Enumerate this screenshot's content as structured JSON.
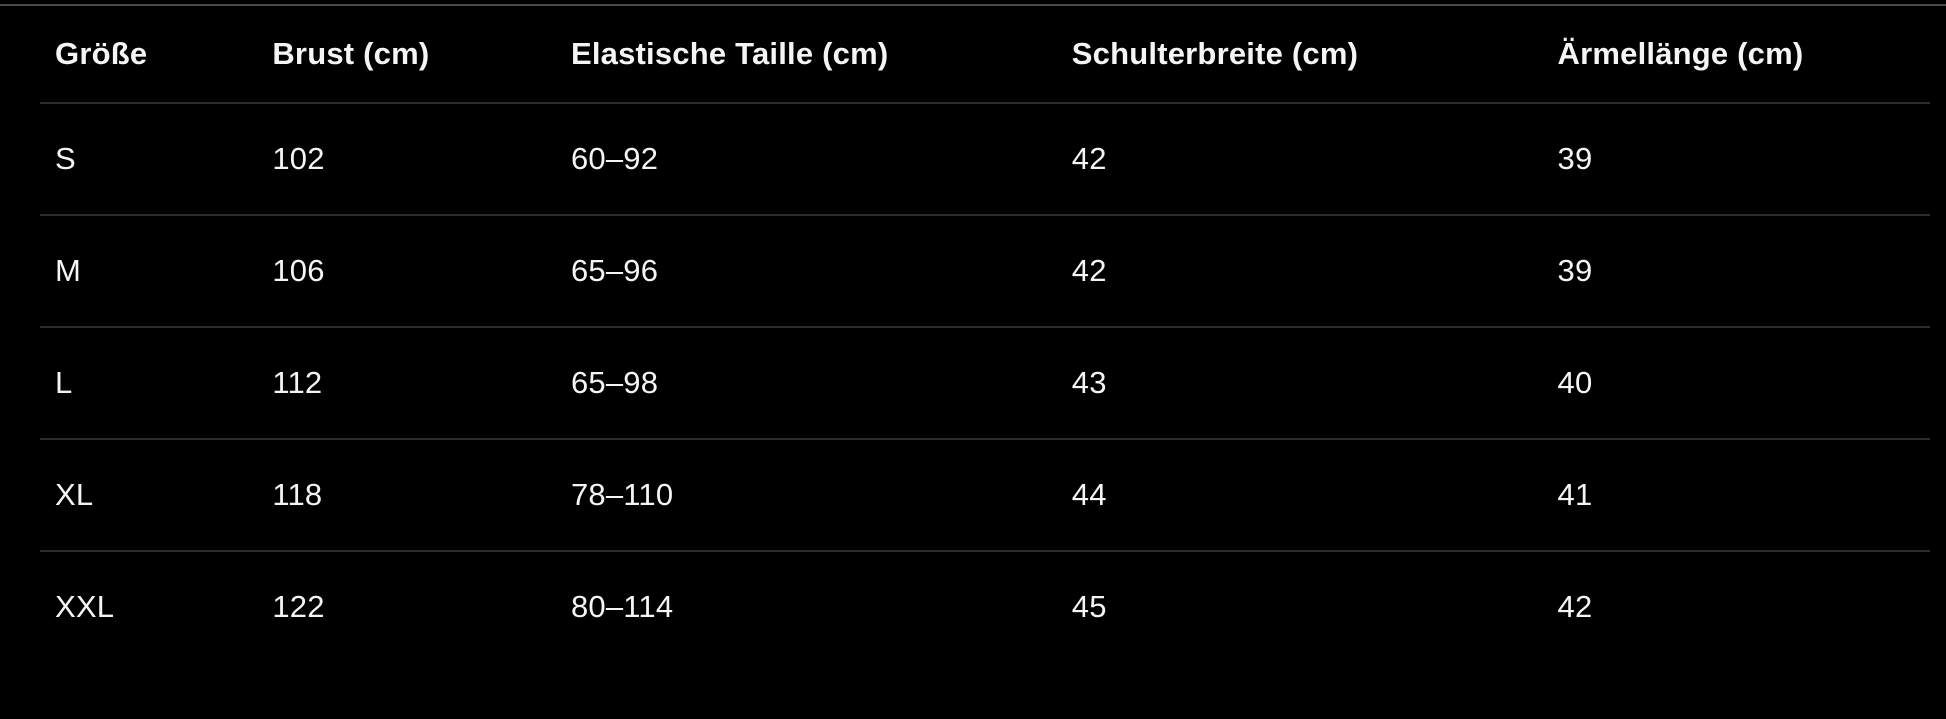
{
  "table": {
    "columns": [
      "Größe",
      "Brust (cm)",
      "Elastische Taille (cm)",
      "Schulterbreite (cm)",
      "Ärmellänge (cm)"
    ],
    "rows": [
      [
        "S",
        "102",
        "60–92",
        "42",
        "39"
      ],
      [
        "M",
        "106",
        "65–96",
        "42",
        "39"
      ],
      [
        "L",
        "112",
        "65–98",
        "43",
        "40"
      ],
      [
        "XL",
        "118",
        "78–110",
        "44",
        "41"
      ],
      [
        "XXL",
        "122",
        "80–114",
        "45",
        "42"
      ]
    ]
  },
  "colors": {
    "background": "#000000",
    "text": "#f5f5f7",
    "row_divider": "#2e2e31",
    "top_hairline": "#4a4a4d"
  }
}
